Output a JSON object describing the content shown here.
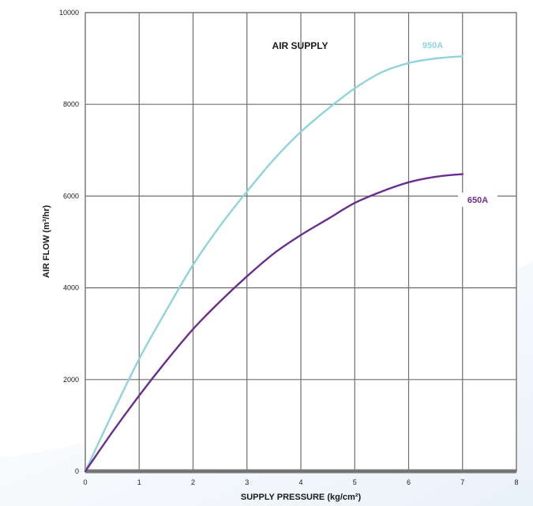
{
  "chart_data": {
    "type": "line",
    "title": "AIR SUPPLY",
    "xlabel": "SUPPLY PRESSURE (kg/cm²)",
    "ylabel": "AIR FLOW (m³/hr)",
    "xlim": [
      0,
      8
    ],
    "ylim": [
      0,
      10000
    ],
    "xticks": [
      "0",
      "1",
      "2",
      "3",
      "4",
      "5",
      "6",
      "7",
      "8"
    ],
    "yticks": [
      "0",
      "2000",
      "4000",
      "6000",
      "8000",
      "10000"
    ],
    "grid": true,
    "series": [
      {
        "name": "950A",
        "color": "#8fd3dc",
        "x": [
          0,
          0.5,
          1,
          1.5,
          2,
          2.5,
          3,
          3.5,
          4,
          4.5,
          5,
          5.5,
          6,
          6.5,
          7
        ],
        "values": [
          0,
          1250,
          2450,
          3500,
          4500,
          5350,
          6100,
          6800,
          7400,
          7900,
          8350,
          8700,
          8900,
          9000,
          9050
        ]
      },
      {
        "name": "650A",
        "color": "#6a2e8f",
        "x": [
          0,
          0.5,
          1,
          1.5,
          2,
          2.5,
          3,
          3.5,
          4,
          4.5,
          5,
          5.5,
          6,
          6.5,
          7
        ],
        "values": [
          0,
          850,
          1650,
          2400,
          3100,
          3700,
          4250,
          4750,
          5150,
          5500,
          5850,
          6100,
          6300,
          6420,
          6480
        ]
      }
    ]
  }
}
